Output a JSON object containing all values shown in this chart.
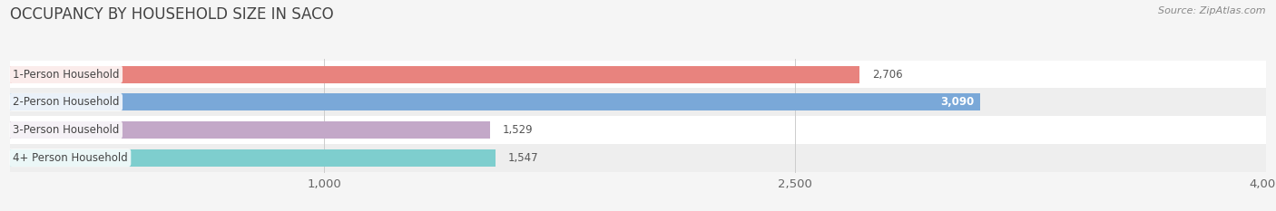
{
  "title": "OCCUPANCY BY HOUSEHOLD SIZE IN SACO",
  "source": "Source: ZipAtlas.com",
  "categories": [
    "1-Person Household",
    "2-Person Household",
    "3-Person Household",
    "4+ Person Household"
  ],
  "values": [
    2706,
    3090,
    1529,
    1547
  ],
  "bar_colors": [
    "#e8837e",
    "#7aa8d8",
    "#c3a8c8",
    "#7ecece"
  ],
  "value_labels": [
    "2,706",
    "3,090",
    "1,529",
    "1,547"
  ],
  "label_inside": [
    false,
    true,
    false,
    false
  ],
  "xlim": [
    0,
    4000
  ],
  "xticks": [
    1000,
    2500,
    4000
  ],
  "xtick_labels": [
    "1,000",
    "2,500",
    "4,000"
  ],
  "background_color": "#f5f5f5",
  "title_fontsize": 12,
  "tick_fontsize": 9.5,
  "label_fontsize": 8.5,
  "value_fontsize": 8.5,
  "bar_height": 0.62,
  "row_bg_colors": [
    "#ffffff",
    "#eeeeee",
    "#ffffff",
    "#eeeeee"
  ]
}
